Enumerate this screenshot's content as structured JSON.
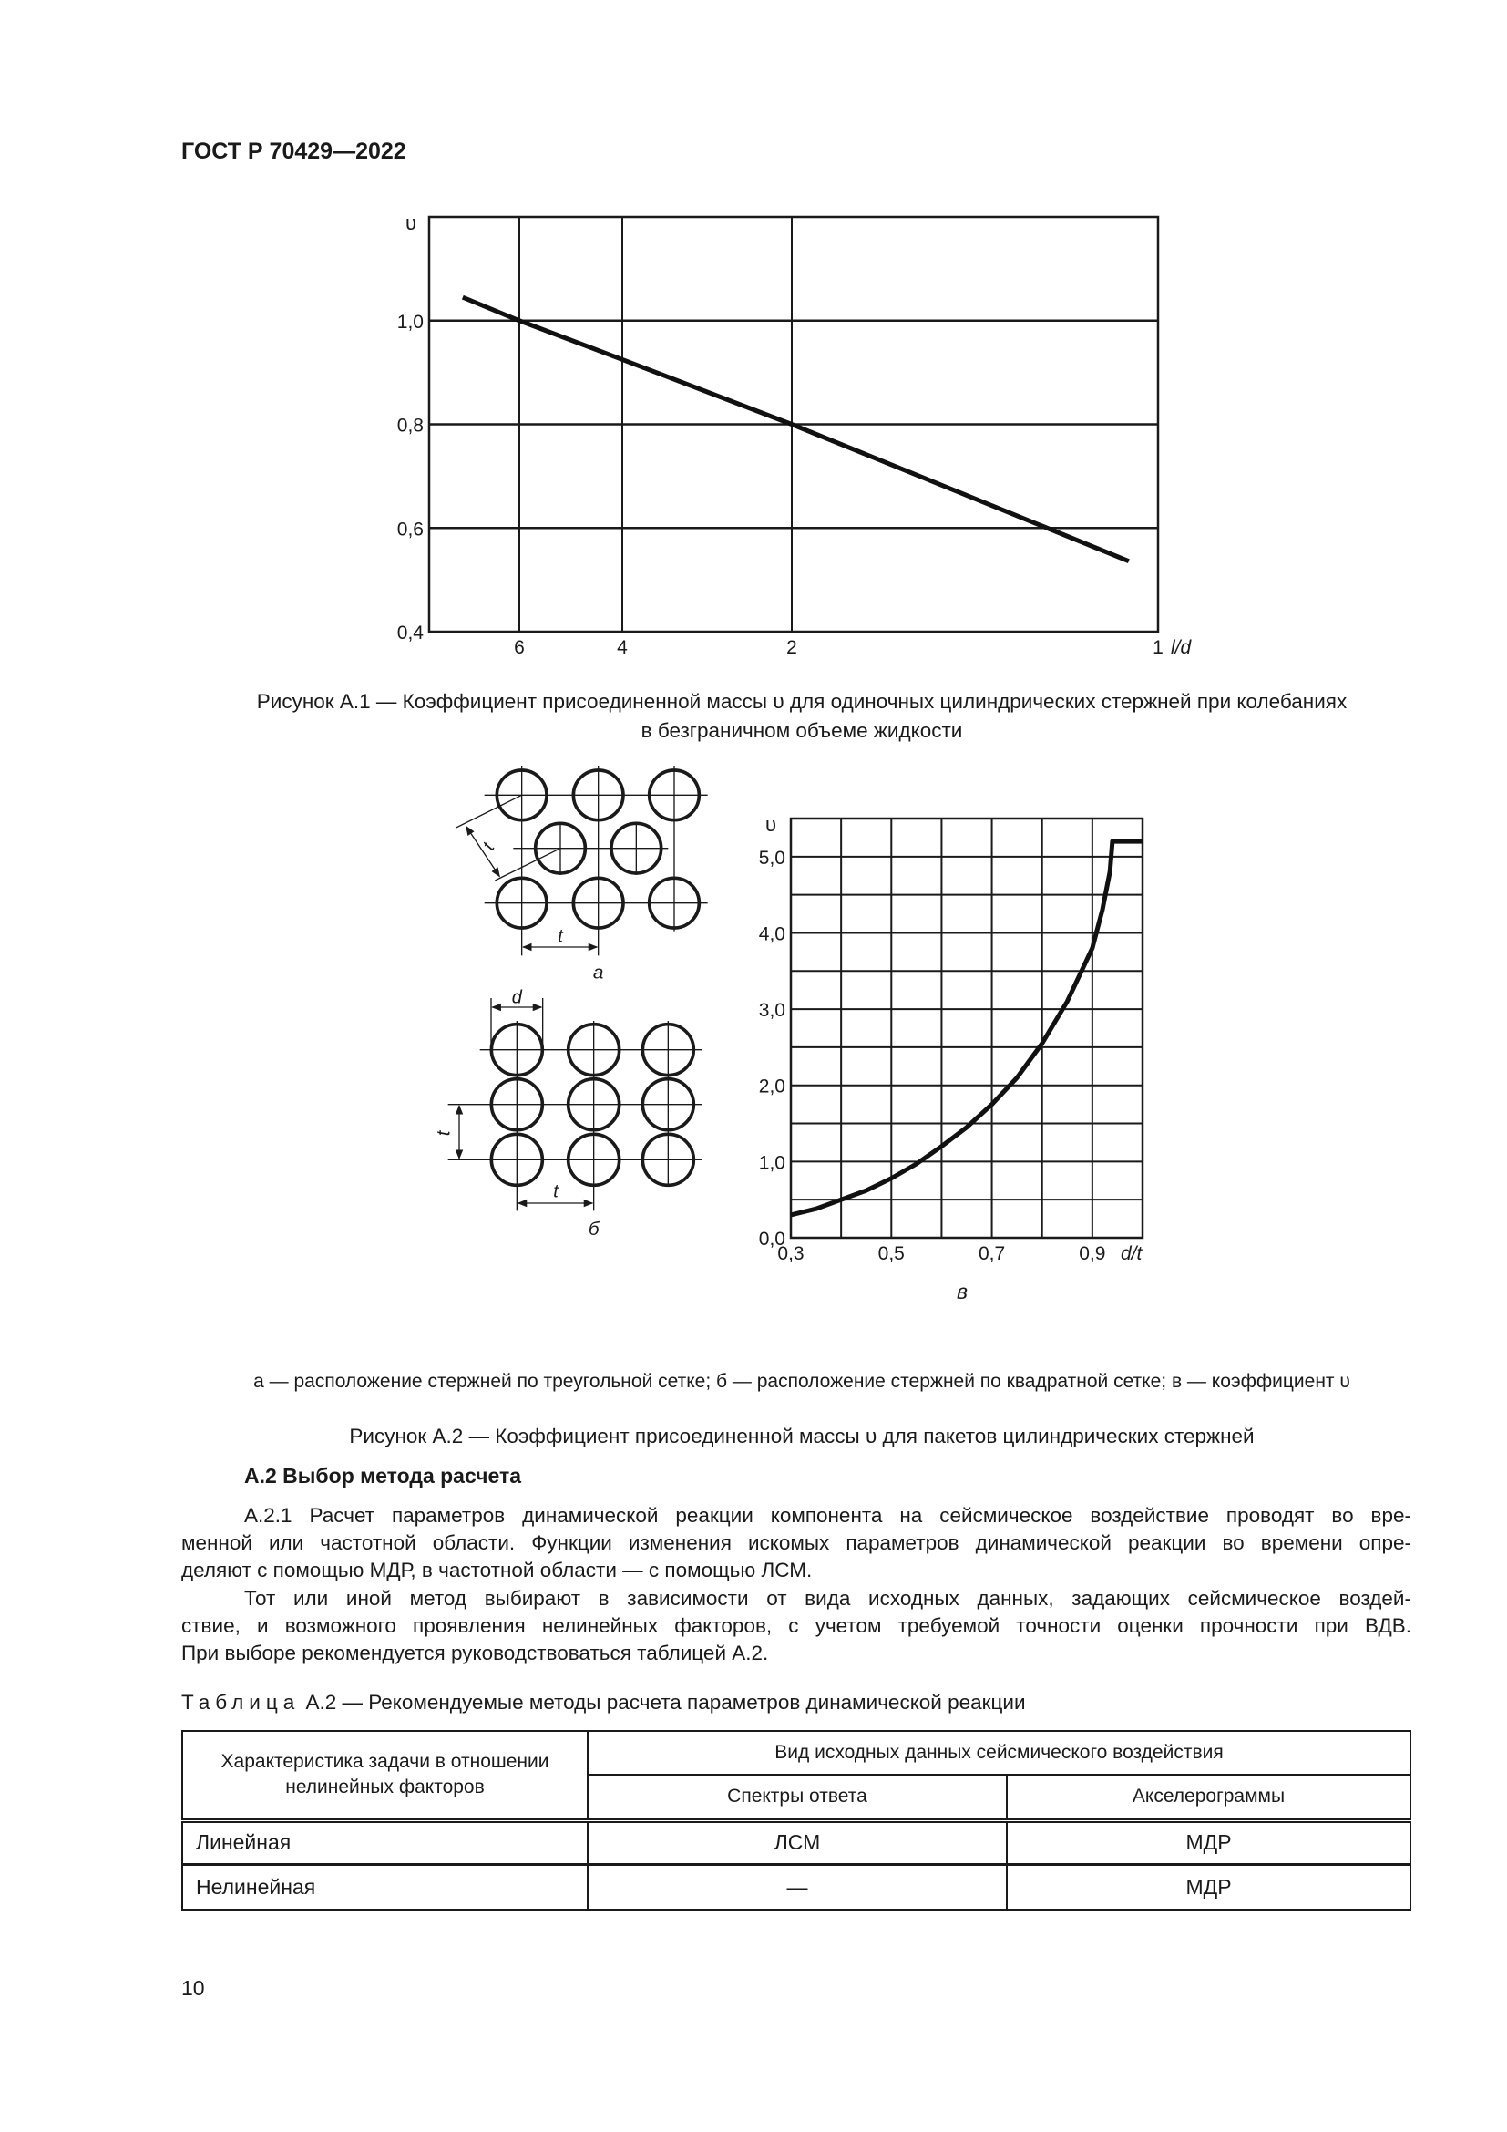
{
  "header": {
    "doc_id": "ГОСТ Р 70429—2022"
  },
  "figure_a1": {
    "caption_lines": [
      "Рисунок А.1 — Коэффициент присоединенной массы υ для одиночных цилиндрических стержней при колебаниях",
      "в безграничном объеме жидкости"
    ]
  },
  "figure_a2": {
    "labels": {
      "t": "t",
      "d": "d",
      "a": "а",
      "b": "б",
      "v": "в"
    },
    "legend": "а — расположение стержней по треугольной сетке; б — расположение стержней по квадратной сетке; в — коэффициент υ",
    "caption": "Рисунок А.2 — Коэффициент присоединенной массы υ для пакетов цилиндрических стержней"
  },
  "section": {
    "heading": "А.2 Выбор метода расчета",
    "lines": [
      "А.2.1 Расчет параметров динамической реакции компонента на сейсмическое воздействие проводят во вре-",
      "менной или частотной области. Функции изменения искомых параметров динамической реакции во времени опре-",
      "деляют с помощью МДР, в частотной области — с помощью ЛСМ.",
      "Тот или иной метод выбирают в зависимости от вида исходных данных, задающих сейсмическое воздей-",
      "ствие, и возможного проявления нелинейных факторов, с учетом требуемой точности оценки прочности при ВДВ.",
      "При выборе рекомендуется руководствоваться таблицей А.2."
    ]
  },
  "table": {
    "caption_prefix": "Таблица",
    "caption_rest": " А.2 — Рекомендуемые методы расчета параметров динамической реакции",
    "col1_header": "Характеристика задачи в отношении нелинейных факторов",
    "group_header": "Вид исходных данных сейсмического воздействия",
    "sub_headers": [
      "Спектры ответа",
      "Акселерограммы"
    ],
    "rows": [
      [
        "Линейная",
        "ЛСМ",
        "МДР"
      ],
      [
        "Нелинейная",
        "—",
        "МДР"
      ]
    ]
  },
  "page_number": "10",
  "chart_data": [
    {
      "type": "line",
      "ylabel": "υ",
      "xlabel": "l/d",
      "x_ticks": [
        "6",
        "4",
        "2",
        "1"
      ],
      "y_ticks": [
        "0,4",
        "0,6",
        "0,8",
        "1,0"
      ],
      "ylim": [
        0.4,
        1.2
      ],
      "grid": true,
      "series": [
        {
          "points": [
            [
              7.1,
              1.045
            ],
            [
              6,
              1.0
            ],
            [
              4,
              0.925
            ],
            [
              2,
              0.8
            ],
            [
              1.08,
              0.536
            ]
          ]
        }
      ]
    },
    {
      "type": "line",
      "ylabel": "υ",
      "xlabel": "d/t",
      "x_ticks": [
        "0,3",
        "0,5",
        "0,7",
        "0,9"
      ],
      "y_ticks": [
        "0,0",
        "1,0",
        "2,0",
        "3,0",
        "4,0",
        "5,0"
      ],
      "xlim": [
        0.3,
        1.0
      ],
      "ylim": [
        0.0,
        5.5
      ],
      "grid": true,
      "series": [
        {
          "points": [
            [
              0.3,
              0.3
            ],
            [
              0.35,
              0.38
            ],
            [
              0.4,
              0.5
            ],
            [
              0.45,
              0.62
            ],
            [
              0.5,
              0.78
            ],
            [
              0.55,
              0.97
            ],
            [
              0.6,
              1.2
            ],
            [
              0.65,
              1.45
            ],
            [
              0.7,
              1.75
            ],
            [
              0.75,
              2.1
            ],
            [
              0.8,
              2.55
            ],
            [
              0.85,
              3.1
            ],
            [
              0.9,
              3.8
            ],
            [
              0.92,
              4.3
            ],
            [
              0.935,
              4.8
            ],
            [
              0.94,
              5.2
            ],
            [
              1.0,
              5.2
            ]
          ]
        }
      ]
    }
  ]
}
